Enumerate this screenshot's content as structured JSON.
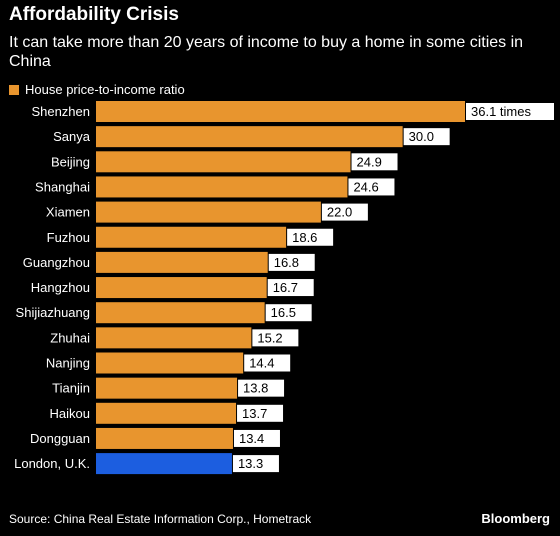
{
  "title": "Affordability Crisis",
  "subtitle": "It can take more than 20 years of income to buy a home in some cities in China",
  "footer": {
    "source": "Source: China Real Estate Information Corp., Hometrack",
    "brand": "Bloomberg"
  },
  "colors": {
    "background": "#000000",
    "primary_bar": "#e8952e",
    "highlight_bar": "#1c5ee0",
    "text": "#ffffff",
    "bar_label_text": "#000000"
  },
  "chart_data": {
    "type": "bar",
    "orientation": "horizontal",
    "title": "Affordability Crisis",
    "subtitle": "It can take more than 20 years of income to buy a home in some cities in China",
    "legend": {
      "entries": [
        "House price-to-income ratio"
      ],
      "placement": "top-left"
    },
    "categories": [
      "Shenzhen",
      "Sanya",
      "Beijing",
      "Shanghai",
      "Xiamen",
      "Fuzhou",
      "Guangzhou",
      "Hangzhou",
      "Shijiazhuang",
      "Zhuhai",
      "Nanjing",
      "Tianjin",
      "Haikou",
      "Dongguan",
      "London, U.K."
    ],
    "series": [
      {
        "name": "House price-to-income ratio",
        "values": [
          36.1,
          30.0,
          24.9,
          24.6,
          22.0,
          18.6,
          16.8,
          16.7,
          16.5,
          15.2,
          14.4,
          13.8,
          13.7,
          13.4,
          13.3
        ]
      }
    ],
    "data_labels": [
      "36.1 times",
      "30.0",
      "24.9",
      "24.6",
      "22.0",
      "18.6",
      "16.8",
      "16.7",
      "16.5",
      "15.2",
      "14.4",
      "13.8",
      "13.7",
      "13.4",
      "13.3"
    ],
    "highlight_category": "London, U.K.",
    "xlim": [
      0,
      36.1
    ],
    "grid": false,
    "xlabel": "",
    "ylabel": ""
  }
}
